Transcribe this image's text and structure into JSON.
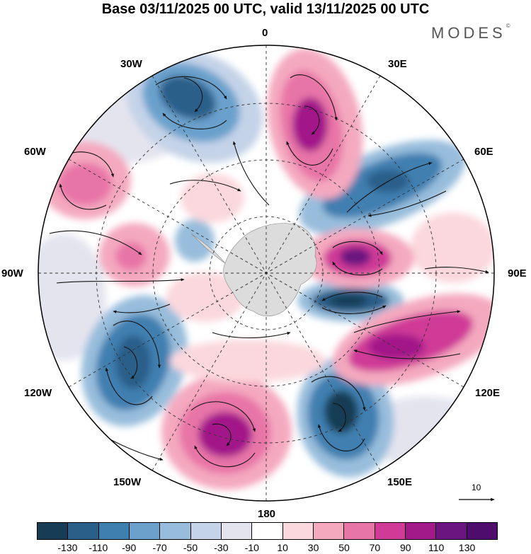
{
  "title": "Base 03/11/2025 00 UTC, valid 13/11/2025 00 UTC",
  "brand": "MODES",
  "brand_mark": "©",
  "longitude_labels": {
    "lon_0": "0",
    "lon_30e": "30E",
    "lon_60e": "60E",
    "lon_90e": "90E",
    "lon_120e": "120E",
    "lon_150e": "150E",
    "lon_180": "180",
    "lon_150w": "150W",
    "lon_120w": "120W",
    "lon_90w": "90W",
    "lon_60w": "60W",
    "lon_30w": "30W"
  },
  "reference_vector": {
    "value": "10"
  },
  "colorbar": {
    "ticks": [
      "-130",
      "-110",
      "-90",
      "-70",
      "-50",
      "-30",
      "-10",
      "10",
      "30",
      "50",
      "70",
      "90",
      "110",
      "130"
    ],
    "colors": [
      "#173c55",
      "#2a5f8a",
      "#3f7fb0",
      "#6ba1cc",
      "#98bddc",
      "#c4d3e8",
      "#e4e4ef",
      "#ffffff",
      "#fbd8dd",
      "#f4a9bf",
      "#e875a7",
      "#cf3b97",
      "#a2198a",
      "#6b1680",
      "#4e0c6d"
    ]
  },
  "colors": {
    "land": "#dcdcdc",
    "gridline": "#333333",
    "streamline": "#111111"
  }
}
